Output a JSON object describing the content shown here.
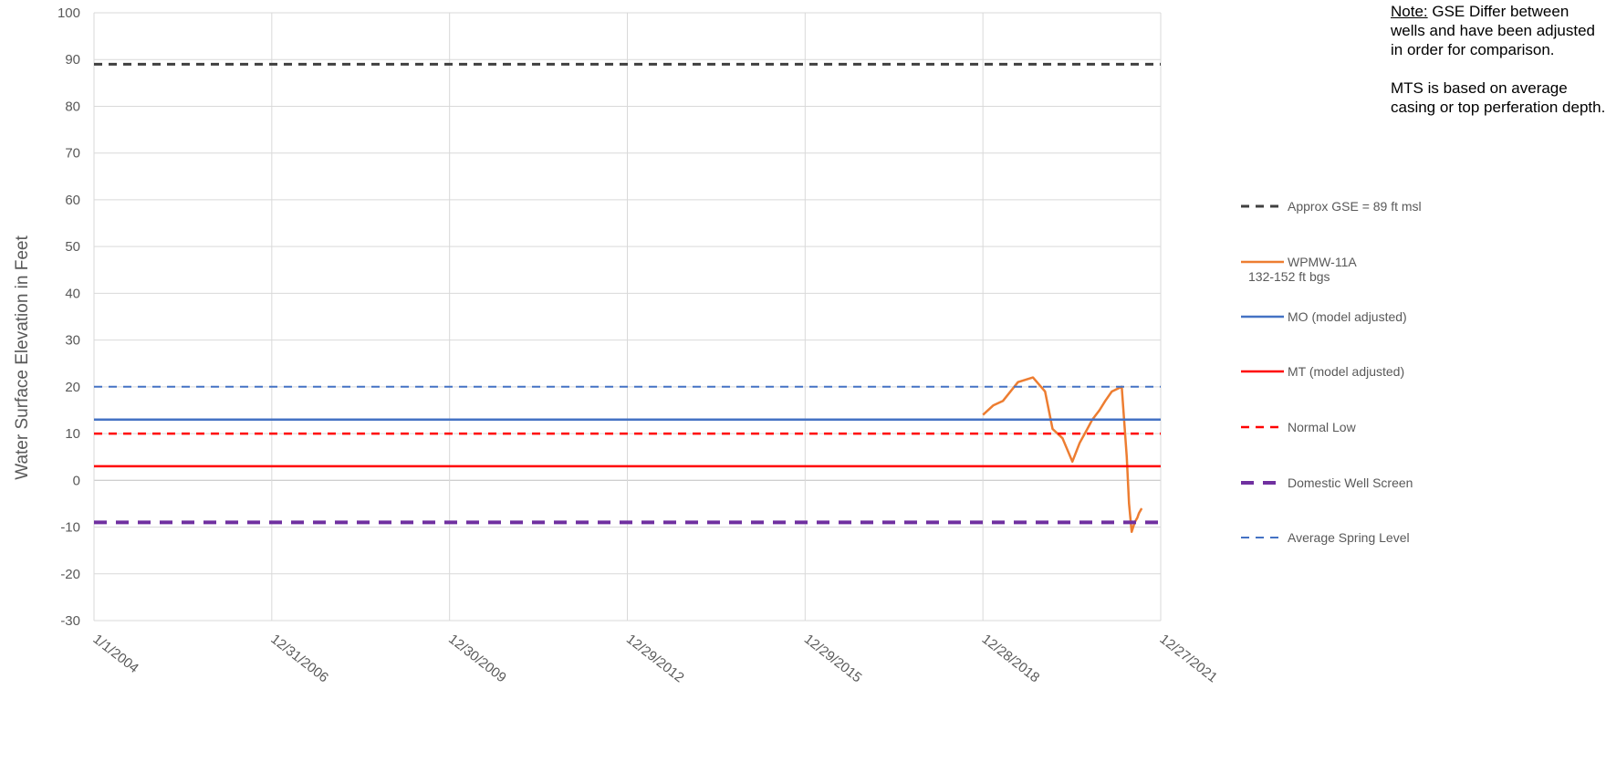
{
  "chart_data": {
    "type": "line",
    "ylabel": "Water Surface Elevation in Feet",
    "xlabel": "",
    "ylim": [
      -30,
      100
    ],
    "yticks": [
      100,
      90,
      80,
      70,
      60,
      50,
      40,
      30,
      20,
      10,
      0,
      -10,
      -20,
      -30
    ],
    "xlim": [
      "2004-01-01",
      "2021-12-27"
    ],
    "xticks": [
      "1/1/2004",
      "12/31/2006",
      "12/30/2009",
      "12/29/2012",
      "12/29/2015",
      "12/28/2018",
      "12/27/2021"
    ],
    "grid": true,
    "legend_position": "right",
    "series": [
      {
        "name": "Approx GSE = 89 ft msl",
        "color": "#404040",
        "style": "dashed",
        "width": 3,
        "x": [
          "2004-01-01",
          "2021-12-27"
        ],
        "y": [
          89,
          89
        ]
      },
      {
        "name": "WPMW-11A",
        "name_line2": "132-152 ft bgs",
        "color": "#ED7D31",
        "style": "solid",
        "width": 2.5,
        "x": [
          "2018-12-28",
          "2019-03-01",
          "2019-05-01",
          "2019-08-01",
          "2019-11-01",
          "2020-01-15",
          "2020-03-01",
          "2020-05-01",
          "2020-07-01",
          "2020-08-15",
          "2020-10-01",
          "2020-11-01",
          "2020-12-15",
          "2021-01-20",
          "2021-03-01",
          "2021-05-01",
          "2021-06-01",
          "2021-06-15",
          "2021-07-01",
          "2021-07-20",
          "2021-08-05",
          "2021-08-15",
          "2021-09-01"
        ],
        "y": [
          14,
          16,
          17,
          21,
          22,
          19,
          11,
          9,
          4,
          8,
          11,
          13,
          15,
          17,
          19,
          20,
          5,
          -5,
          -11,
          -9,
          -8,
          -7,
          -6
        ]
      },
      {
        "name": "MO (model adjusted)",
        "color": "#4472C4",
        "style": "solid",
        "width": 2.5,
        "x": [
          "2004-01-01",
          "2021-12-27"
        ],
        "y": [
          13,
          13
        ]
      },
      {
        "name": "MT (model adjusted)",
        "color": "#FF0000",
        "style": "solid",
        "width": 2.5,
        "x": [
          "2004-01-01",
          "2021-12-27"
        ],
        "y": [
          3,
          3
        ]
      },
      {
        "name": "Normal Low",
        "color": "#FF0000",
        "style": "dashed",
        "width": 2.5,
        "x": [
          "2004-01-01",
          "2021-12-27"
        ],
        "y": [
          10,
          10
        ]
      },
      {
        "name": "Domestic Well Screen",
        "color": "#7030A0",
        "style": "dashed-heavy",
        "width": 4,
        "x": [
          "2004-01-01",
          "2021-12-27"
        ],
        "y": [
          -9,
          -9
        ]
      },
      {
        "name": "Average Spring Level",
        "color": "#4472C4",
        "style": "dashed",
        "width": 2,
        "x": [
          "2004-01-01",
          "2021-12-27"
        ],
        "y": [
          20,
          20
        ]
      }
    ]
  },
  "note": {
    "label": "Note:",
    "text1": " GSE Differ between wells and have been adjusted in order for comparison.",
    "text2": "MTS is based on average casing or top perferation depth."
  }
}
